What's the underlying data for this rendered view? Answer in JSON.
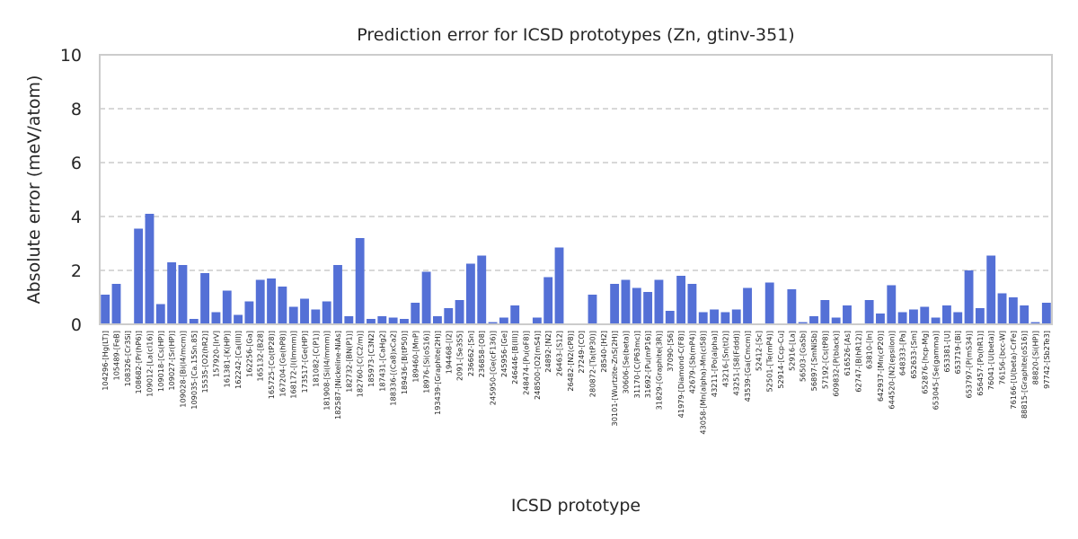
{
  "chart_data": {
    "type": "bar",
    "title": "Prediction error for ICSD prototypes (Zn, gtinv-351)",
    "xlabel": "ICSD prototype",
    "ylabel": "Absolute error (meV/atom)",
    "ylim": [
      0,
      10
    ],
    "yticks": [
      0,
      2,
      4,
      6,
      8,
      10
    ],
    "grid": "y-dashed",
    "bar_color": "#5470d6",
    "categories": [
      "104296-[Hg(LT)]",
      "105489-[FeB]",
      "108326-[Cr3Si]",
      "108682-[Pr(hP6)]",
      "109012-[La(cI16)]",
      "109018-[Cs(HP)]",
      "109027-[Sr(HP)]",
      "109028-[Bi(I4/mcm)]",
      "109035-[Ca.15Sn.85]",
      "15535-[O2(hR2)]",
      "157920-[IrV]",
      "161381-[K(HP)]",
      "162242-[Ca(III)]",
      "162256-[Ga]",
      "165132-[B28]",
      "165725-[Co(tP28)]",
      "167204-[Ge(hP8)]",
      "168172-[I(Immm)]",
      "173517-[Ge(HP)]",
      "181082-[C(P1)]",
      "181908-[Si(I4/mmm)]",
      "182587-[Nickeline-NiAs]",
      "182732-[BN(P1)]",
      "182760-[C(C2/m)]",
      "185973-[C3N2]",
      "187431-[CaHg2]",
      "188336-[(Ca8)xCa2]",
      "189436-[B(tP50)]",
      "189460-[MnP]",
      "18976-[Si(oS16)]",
      "193439-[Graphite(2H)]",
      "194468-[I2]",
      "2091-[Se3S5]",
      "236662-[Sn]",
      "236858-[O8]",
      "245950-[Ge(cF136)]",
      "245956-[Ge]",
      "246446-[B(III)]",
      "248474-[Pu(oF8)]",
      "248500-[O2(mS4)]",
      "24892-[N2]",
      "26463-[S12]",
      "26482-[N2(cP8)]",
      "27249-[CO]",
      "280872-[Ta(tP30)]",
      "28540-[H2]",
      "30101-[Wurtzite-ZnS(2H)]",
      "30606-[Se(beta)]",
      "31170-[C(P63mc)]",
      "31692-[Pu(mP16)]",
      "31829-[Graphite(3R)]",
      "37090-[S6]",
      "41979-[Diamond-C(F8)]",
      "42679-[Sb(mP4)]",
      "43058-[Mn(alpha)-Mn(cI58)]",
      "43211-[Po(alpha)]",
      "43216-[Sn(tI2)]",
      "43251-[S8(Fddd)]",
      "43539-[Ga(Cmcm)]",
      "52412-[Sc]",
      "52501-[Te(mP4)]",
      "52914-[Ccp-Cu]",
      "52916-[La]",
      "56503-[GaSb]",
      "56897-[SmNiSb]",
      "57192-[Cs(tP8)]",
      "609832-[P(black)]",
      "616526-[As]",
      "62747-[B(hR12)]",
      "63810-[In]",
      "642937-[Mn(cP20)]",
      "644520-[N2(epsilon)]",
      "648333-[Pa]",
      "652633-[Sm]",
      "652876-[hcp-Mg]",
      "653045-[Se(gamma)]",
      "653381-[U]",
      "653719-[Bi]",
      "653797-[P(mS34)]",
      "656457-[Po(hR1)]",
      "76041-[U(beta)]",
      "76156-[bcc-W]",
      "76166-[U(beta)-CrFe]",
      "88815-[Graphite(oS16)]",
      "88820-[Si(HP)]",
      "97742-[Sb2Te3]"
    ],
    "values": [
      1.1,
      1.5,
      0.0,
      3.55,
      4.1,
      0.75,
      2.3,
      2.2,
      0.2,
      1.9,
      0.45,
      1.25,
      0.35,
      0.85,
      1.65,
      1.7,
      1.4,
      0.65,
      0.95,
      0.55,
      0.85,
      2.2,
      0.3,
      3.2,
      0.2,
      0.3,
      0.25,
      0.2,
      0.8,
      1.95,
      0.3,
      0.6,
      0.9,
      2.25,
      2.55,
      0.08,
      0.25,
      0.7,
      0.0,
      0.25,
      1.75,
      2.85,
      0.0,
      0.0,
      1.1,
      0.0,
      1.5,
      1.65,
      1.35,
      1.2,
      1.65,
      0.5,
      1.8,
      1.5,
      0.45,
      0.55,
      0.45,
      0.55,
      1.35,
      0.0,
      1.55,
      0.0,
      1.3,
      0.08,
      0.3,
      0.9,
      0.25,
      0.7,
      0.0,
      0.9,
      0.4,
      1.45,
      0.45,
      0.55,
      0.65,
      0.25,
      0.7,
      0.45,
      2.0,
      0.6,
      2.55,
      1.15,
      1.0,
      0.7,
      0.08,
      0.8
    ]
  }
}
